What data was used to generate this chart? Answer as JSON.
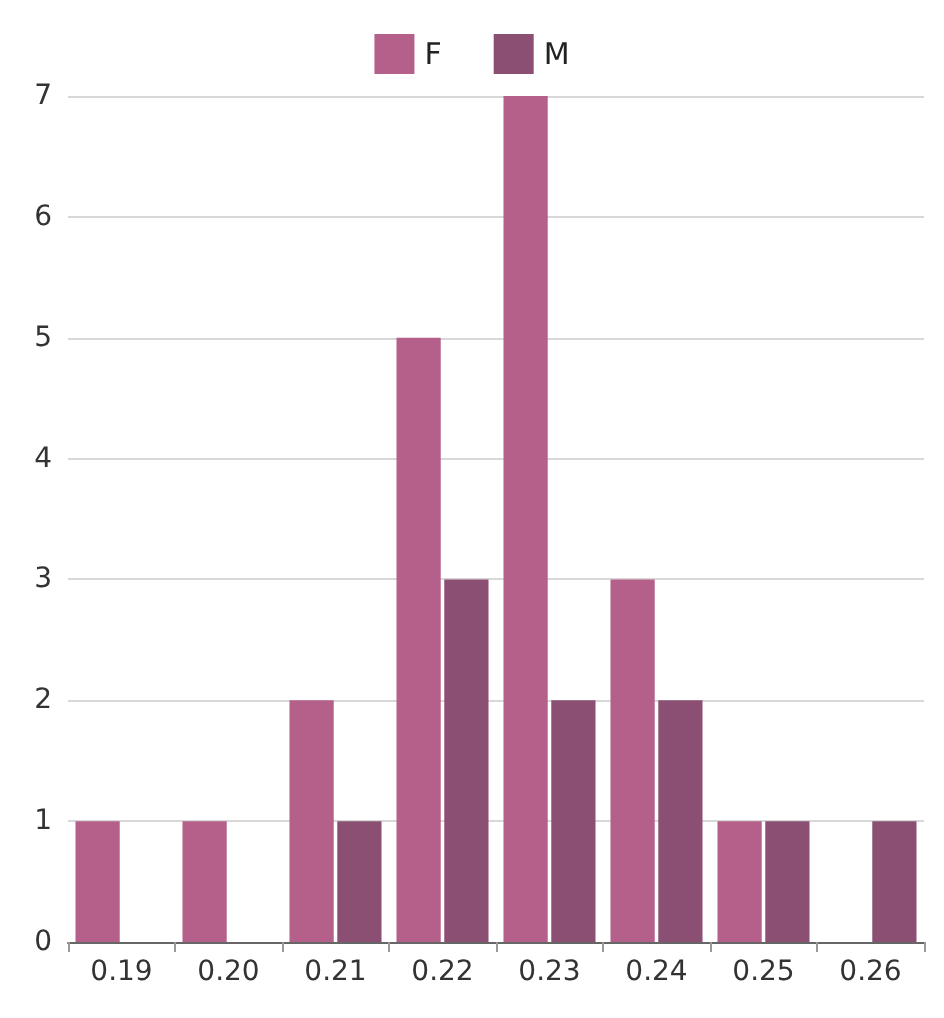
{
  "chart_data": {
    "type": "bar",
    "categories": [
      "0.19",
      "0.20",
      "0.21",
      "0.22",
      "0.23",
      "0.24",
      "0.25",
      "0.26"
    ],
    "series": [
      {
        "name": "F",
        "color": "#b5608a",
        "values": [
          1,
          1,
          2,
          5,
          7,
          3,
          1,
          0
        ]
      },
      {
        "name": "M",
        "color": "#8a4f73",
        "values": [
          0,
          0,
          1,
          3,
          2,
          2,
          1,
          1
        ]
      }
    ],
    "ylim": [
      0,
      7
    ],
    "yticks": [
      0,
      1,
      2,
      3,
      4,
      5,
      6,
      7
    ],
    "grid": "y",
    "legend": "top"
  }
}
